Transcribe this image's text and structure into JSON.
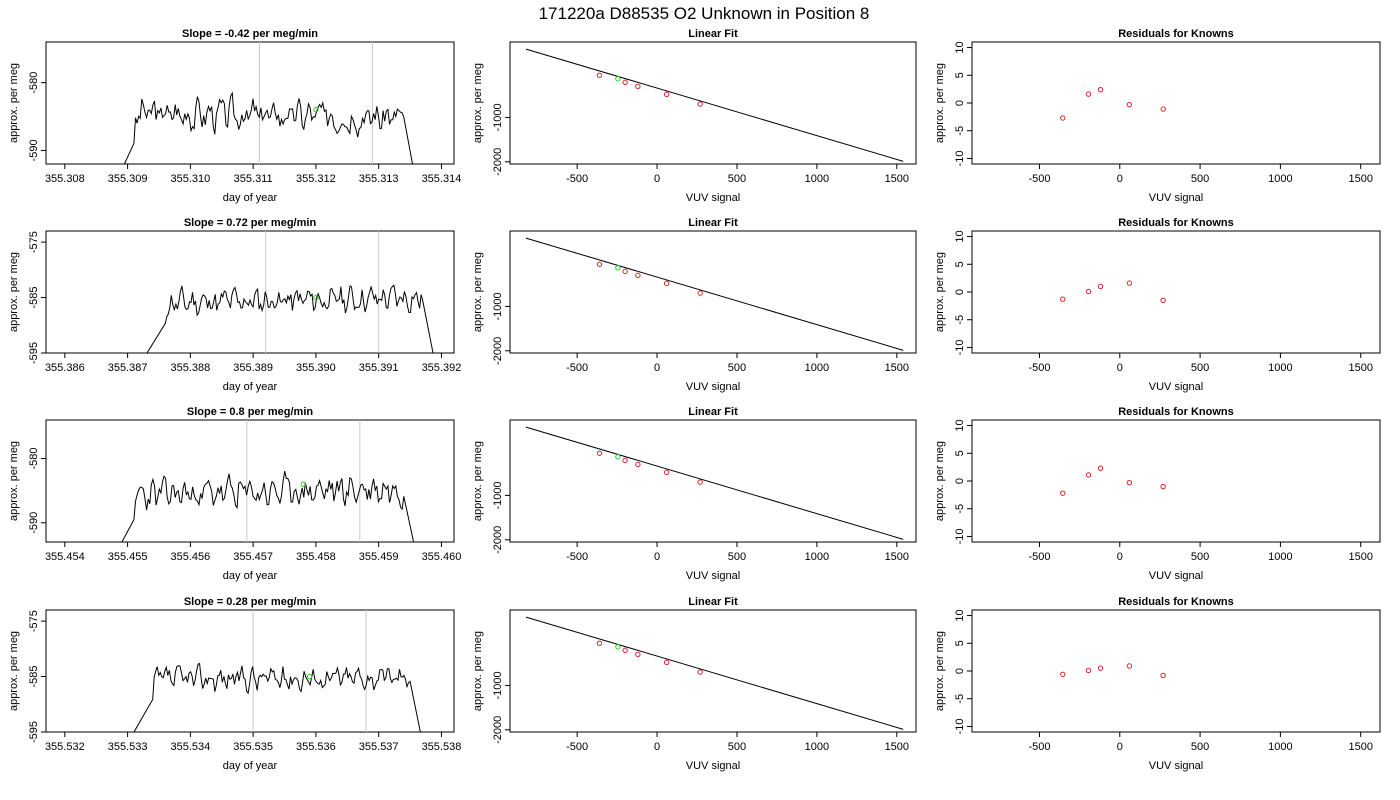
{
  "figure_title": "171220a     D88535   O2 Unknown in Position  8",
  "colors": {
    "trace": "#000000",
    "known_points": "#d62728",
    "unknown_point": "#2ecc2e",
    "vertical_markers": "#c8c8c8",
    "frame": "#000000"
  },
  "chart_data": [
    {
      "type": "line",
      "row": 0,
      "col": 0,
      "title": "Slope =  -0.42  per meg/min",
      "xlabel": "day of year",
      "ylabel": "approx. per meg",
      "xlim": [
        355.3077,
        355.3142
      ],
      "ylim": [
        -592,
        -574
      ],
      "xticks": [
        "355.308",
        "355.309",
        "355.310",
        "355.311",
        "355.312",
        "355.313",
        "355.314"
      ],
      "xtick_values": [
        355.308,
        355.309,
        355.31,
        355.311,
        355.312,
        355.313,
        355.314
      ],
      "yticks": [
        "-580",
        "-590"
      ],
      "ytick_values": [
        -580,
        -590
      ],
      "vlines": [
        355.3111,
        355.3129
      ],
      "trace": {
        "x_start": 355.3088,
        "x_end": 355.3136,
        "y_start": -595,
        "y_end": -595,
        "rise_at": 355.3091,
        "fall_at": 355.3134,
        "mean": -584.8,
        "amplitude": 2.6,
        "drift": -0.6,
        "seed": 3
      },
      "unknown_point": [
        355.312,
        -584.0
      ]
    },
    {
      "type": "scatter",
      "row": 0,
      "col": 1,
      "title": "Linear Fit",
      "xlabel": "VUV signal",
      "ylabel": "approx. per meg",
      "xlim": [
        -920,
        1620
      ],
      "ylim": [
        -2050,
        700
      ],
      "xticks": [
        "-500",
        "0",
        "500",
        "1000",
        "1500"
      ],
      "xtick_values": [
        -500,
        0,
        500,
        1000,
        1500
      ],
      "yticks": [
        "-1000",
        "-2000"
      ],
      "ytick_values": [
        -1000,
        -2000
      ],
      "fit_line": [
        [
          -820,
          540
        ],
        [
          1540,
          -1990
        ]
      ],
      "known_points": [
        [
          -360,
          -50
        ],
        [
          -200,
          -210
        ],
        [
          -120,
          -300
        ],
        [
          60,
          -480
        ],
        [
          270,
          -700
        ]
      ],
      "unknown_point": [
        -245,
        -130
      ]
    },
    {
      "type": "scatter",
      "row": 0,
      "col": 2,
      "title": "Residuals for Knowns",
      "xlabel": "VUV signal",
      "ylabel": "approx. per meg",
      "xlim": [
        -920,
        1620
      ],
      "ylim": [
        -11,
        11
      ],
      "xticks": [
        "-500",
        "0",
        "500",
        "1000",
        "1500"
      ],
      "xtick_values": [
        -500,
        0,
        500,
        1000,
        1500
      ],
      "yticks": [
        "10",
        "5",
        "0",
        "-5",
        "-10"
      ],
      "ytick_values": [
        10,
        5,
        0,
        -5,
        -10
      ],
      "known_points": [
        [
          -355,
          -2.7
        ],
        [
          -195,
          1.6
        ],
        [
          -120,
          2.4
        ],
        [
          60,
          -0.3
        ],
        [
          270,
          -1.1
        ]
      ]
    },
    {
      "type": "line",
      "row": 1,
      "col": 0,
      "title": "Slope =  0.72  per meg/min",
      "xlabel": "day of year",
      "ylabel": "approx. per meg",
      "xlim": [
        355.3857,
        355.3922
      ],
      "ylim": [
        -595,
        -573
      ],
      "xticks": [
        "355.386",
        "355.387",
        "355.388",
        "355.389",
        "355.390",
        "355.391",
        "355.392"
      ],
      "xtick_values": [
        355.386,
        355.387,
        355.388,
        355.389,
        355.39,
        355.391,
        355.392
      ],
      "yticks": [
        "-575",
        "-585",
        "-595"
      ],
      "ytick_values": [
        -575,
        -585,
        -595
      ],
      "vlines": [
        355.3892,
        355.391
      ],
      "trace": {
        "x_start": 355.3872,
        "x_end": 355.3919,
        "y_start": -597,
        "y_end": -597,
        "rise_at": 355.3876,
        "fall_at": 355.3917,
        "mean": -585.5,
        "amplitude": 2.6,
        "drift": 0.9,
        "seed": 11
      },
      "unknown_point": [
        355.39,
        -585.0
      ]
    },
    {
      "type": "scatter",
      "row": 1,
      "col": 1,
      "title": "Linear Fit",
      "xlabel": "VUV signal",
      "ylabel": "approx. per meg",
      "xlim": [
        -920,
        1620
      ],
      "ylim": [
        -2050,
        700
      ],
      "xticks": [
        "-500",
        "0",
        "500",
        "1000",
        "1500"
      ],
      "xtick_values": [
        -500,
        0,
        500,
        1000,
        1500
      ],
      "yticks": [
        "-1000",
        "-2000"
      ],
      "ytick_values": [
        -1000,
        -2000
      ],
      "fit_line": [
        [
          -820,
          540
        ],
        [
          1540,
          -1990
        ]
      ],
      "known_points": [
        [
          -360,
          -50
        ],
        [
          -200,
          -210
        ],
        [
          -120,
          -300
        ],
        [
          60,
          -480
        ],
        [
          270,
          -700
        ]
      ],
      "unknown_point": [
        -245,
        -130
      ]
    },
    {
      "type": "scatter",
      "row": 1,
      "col": 2,
      "title": "Residuals for Knowns",
      "xlabel": "VUV signal",
      "ylabel": "approx. per meg",
      "xlim": [
        -920,
        1620
      ],
      "ylim": [
        -11,
        11
      ],
      "xticks": [
        "-500",
        "0",
        "500",
        "1000",
        "1500"
      ],
      "xtick_values": [
        -500,
        0,
        500,
        1000,
        1500
      ],
      "yticks": [
        "10",
        "5",
        "0",
        "-5",
        "-10"
      ],
      "ytick_values": [
        10,
        5,
        0,
        -5,
        -10
      ],
      "known_points": [
        [
          -355,
          -1.3
        ],
        [
          -195,
          0.1
        ],
        [
          -120,
          1.0
        ],
        [
          60,
          1.6
        ],
        [
          270,
          -1.5
        ]
      ]
    },
    {
      "type": "line",
      "row": 2,
      "col": 0,
      "title": "Slope =  0.8  per meg/min",
      "xlabel": "day of year",
      "ylabel": "approx. per meg",
      "xlim": [
        355.4537,
        355.4602
      ],
      "ylim": [
        -593,
        -574
      ],
      "xticks": [
        "355.454",
        "355.455",
        "355.456",
        "355.457",
        "355.458",
        "355.459",
        "355.460"
      ],
      "xtick_values": [
        355.454,
        355.455,
        355.456,
        355.457,
        355.458,
        355.459,
        355.46
      ],
      "yticks": [
        "-580",
        "-590"
      ],
      "ytick_values": [
        -580,
        -590
      ],
      "vlines": [
        355.4569,
        355.4587
      ],
      "trace": {
        "x_start": 355.4548,
        "x_end": 355.4596,
        "y_start": -595,
        "y_end": -595,
        "rise_at": 355.4551,
        "fall_at": 355.4594,
        "mean": -585.2,
        "amplitude": 2.7,
        "drift": 1.0,
        "seed": 23
      },
      "unknown_point": [
        355.4578,
        -584.0
      ]
    },
    {
      "type": "scatter",
      "row": 2,
      "col": 1,
      "title": "Linear Fit",
      "xlabel": "VUV signal",
      "ylabel": "approx. per meg",
      "xlim": [
        -920,
        1620
      ],
      "ylim": [
        -2050,
        700
      ],
      "xticks": [
        "-500",
        "0",
        "500",
        "1000",
        "1500"
      ],
      "xtick_values": [
        -500,
        0,
        500,
        1000,
        1500
      ],
      "yticks": [
        "-1000",
        "-2000"
      ],
      "ytick_values": [
        -1000,
        -2000
      ],
      "fit_line": [
        [
          -820,
          540
        ],
        [
          1540,
          -1990
        ]
      ],
      "known_points": [
        [
          -360,
          -50
        ],
        [
          -200,
          -210
        ],
        [
          -120,
          -300
        ],
        [
          60,
          -480
        ],
        [
          270,
          -700
        ]
      ],
      "unknown_point": [
        -245,
        -130
      ]
    },
    {
      "type": "scatter",
      "row": 2,
      "col": 2,
      "title": "Residuals for Knowns",
      "xlabel": "VUV signal",
      "ylabel": "approx. per meg",
      "xlim": [
        -920,
        1620
      ],
      "ylim": [
        -11,
        11
      ],
      "xticks": [
        "-500",
        "0",
        "500",
        "1000",
        "1500"
      ],
      "xtick_values": [
        -500,
        0,
        500,
        1000,
        1500
      ],
      "yticks": [
        "10",
        "5",
        "0",
        "-5",
        "-10"
      ],
      "ytick_values": [
        10,
        5,
        0,
        -5,
        -10
      ],
      "known_points": [
        [
          -355,
          -2.2
        ],
        [
          -195,
          1.1
        ],
        [
          -120,
          2.3
        ],
        [
          60,
          -0.3
        ],
        [
          270,
          -1.0
        ]
      ]
    },
    {
      "type": "line",
      "row": 3,
      "col": 0,
      "title": "Slope =  0.28  per meg/min",
      "xlabel": "day of year",
      "ylabel": "approx. per meg",
      "xlim": [
        355.5317,
        355.5382
      ],
      "ylim": [
        -595,
        -573
      ],
      "xticks": [
        "355.532",
        "355.533",
        "355.534",
        "355.535",
        "355.536",
        "355.537",
        "355.538"
      ],
      "xtick_values": [
        355.532,
        355.533,
        355.534,
        355.535,
        355.536,
        355.537,
        355.538
      ],
      "yticks": [
        "-575",
        "-585",
        "-595"
      ],
      "ytick_values": [
        -575,
        -585,
        -595
      ],
      "vlines": [
        355.535,
        355.5368
      ],
      "trace": {
        "x_start": 355.533,
        "x_end": 355.5377,
        "y_start": -597,
        "y_end": -597,
        "rise_at": 355.5334,
        "fall_at": 355.5375,
        "mean": -585.3,
        "amplitude": 2.4,
        "drift": 0.3,
        "seed": 37
      },
      "unknown_point": [
        355.5359,
        -585.0
      ]
    },
    {
      "type": "scatter",
      "row": 3,
      "col": 1,
      "title": "Linear Fit",
      "xlabel": "VUV signal",
      "ylabel": "approx. per meg",
      "xlim": [
        -920,
        1620
      ],
      "ylim": [
        -2050,
        700
      ],
      "xticks": [
        "-500",
        "0",
        "500",
        "1000",
        "1500"
      ],
      "xtick_values": [
        -500,
        0,
        500,
        1000,
        1500
      ],
      "yticks": [
        "-1000",
        "-2000"
      ],
      "ytick_values": [
        -1000,
        -2000
      ],
      "fit_line": [
        [
          -820,
          540
        ],
        [
          1540,
          -1990
        ]
      ],
      "known_points": [
        [
          -360,
          -50
        ],
        [
          -200,
          -210
        ],
        [
          -120,
          -300
        ],
        [
          60,
          -480
        ],
        [
          270,
          -700
        ]
      ],
      "unknown_point": [
        -245,
        -130
      ]
    },
    {
      "type": "scatter",
      "row": 3,
      "col": 2,
      "title": "Residuals for Knowns",
      "xlabel": "VUV signal",
      "ylabel": "approx. per meg",
      "xlim": [
        -920,
        1620
      ],
      "ylim": [
        -11,
        11
      ],
      "xticks": [
        "-500",
        "0",
        "500",
        "1000",
        "1500"
      ],
      "xtick_values": [
        -500,
        0,
        500,
        1000,
        1500
      ],
      "yticks": [
        "10",
        "5",
        "0",
        "-5",
        "-10"
      ],
      "ytick_values": [
        10,
        5,
        0,
        -5,
        -10
      ],
      "known_points": [
        [
          -355,
          -0.6
        ],
        [
          -195,
          0.1
        ],
        [
          -120,
          0.5
        ],
        [
          60,
          0.9
        ],
        [
          270,
          -0.8
        ]
      ]
    }
  ]
}
